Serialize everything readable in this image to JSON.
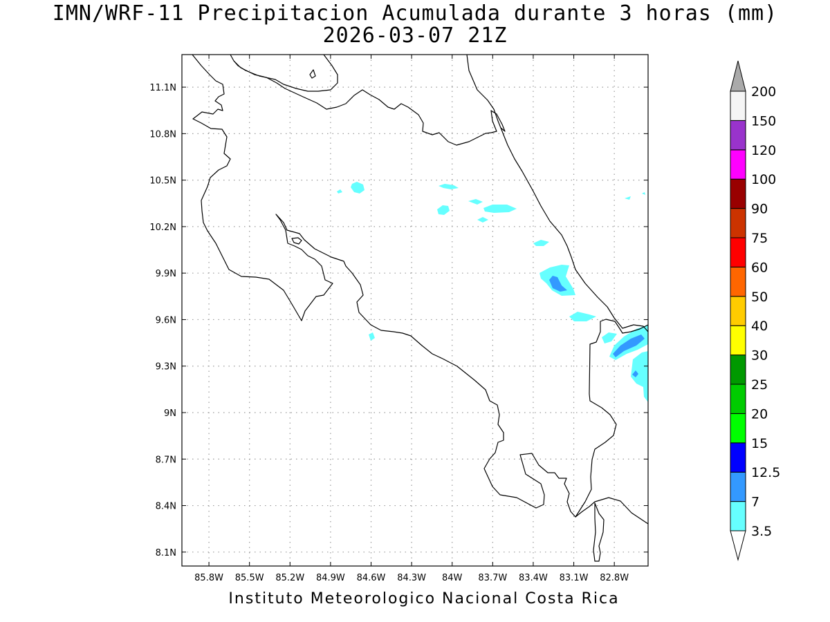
{
  "title": {
    "line1": "IMN/WRF-11 Precipitacion Acumulada durante 3 horas (mm)",
    "line2": "2026-03-07 21Z"
  },
  "footer": "Instituto Meteorologico Nacional Costa Rica",
  "map": {
    "lon_range": [
      -86.0,
      -82.55
    ],
    "lat_range": [
      8.01,
      11.31
    ],
    "lon_ticks": [
      {
        "value": -85.8,
        "label": "85.8W"
      },
      {
        "value": -85.5,
        "label": "85.5W"
      },
      {
        "value": -85.2,
        "label": "85.2W"
      },
      {
        "value": -84.9,
        "label": "84.9W"
      },
      {
        "value": -84.6,
        "label": "84.6W"
      },
      {
        "value": -84.3,
        "label": "84.3W"
      },
      {
        "value": -84.0,
        "label": "84W"
      },
      {
        "value": -83.7,
        "label": "83.7W"
      },
      {
        "value": -83.4,
        "label": "83.4W"
      },
      {
        "value": -83.1,
        "label": "83.1W"
      },
      {
        "value": -82.8,
        "label": "82.8W"
      }
    ],
    "lat_ticks": [
      {
        "value": 11.1,
        "label": "11.1N"
      },
      {
        "value": 10.8,
        "label": "10.8N"
      },
      {
        "value": 10.5,
        "label": "10.5N"
      },
      {
        "value": 10.2,
        "label": "10.2N"
      },
      {
        "value": 9.9,
        "label": "9.9N"
      },
      {
        "value": 9.6,
        "label": "9.6N"
      },
      {
        "value": 9.3,
        "label": "9.3N"
      },
      {
        "value": 9.0,
        "label": "9N"
      },
      {
        "value": 8.7,
        "label": "8.7N"
      },
      {
        "value": 8.4,
        "label": "8.4N"
      },
      {
        "value": 8.1,
        "label": "8.1N"
      }
    ],
    "grid": "dotted"
  },
  "colorbar": {
    "levels": [
      "3.5",
      "7",
      "12.5",
      "15",
      "20",
      "25",
      "30",
      "40",
      "50",
      "60",
      "75",
      "90",
      "100",
      "120",
      "150",
      "200"
    ],
    "colors": [
      "#66ffff",
      "#3399ff",
      "#0000ff",
      "#00ff00",
      "#00cc00",
      "#009900",
      "#ffff00",
      "#ffcc00",
      "#ff6600",
      "#ff0000",
      "#cc3300",
      "#990000",
      "#ff00ff",
      "#9933cc",
      "#f5f5f5"
    ],
    "low_end_color": "#ffffff",
    "high_end_color": "#aaaaaa"
  },
  "precip_areas": [
    {
      "level": "3.5",
      "color": "#66ffff"
    },
    {
      "level": "7",
      "color": "#3399ff"
    }
  ]
}
